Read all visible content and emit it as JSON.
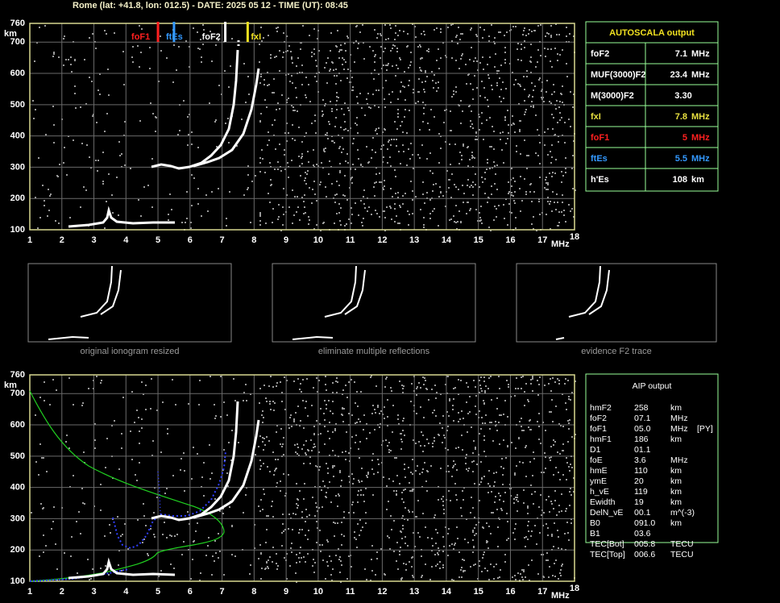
{
  "header": {
    "title": "Rome (lat: +41.8, lon: 012.5) - DATE: 2025 05 12 - TIME (UT): 08:45"
  },
  "top_plot": {
    "y_unit": "km",
    "x_unit": "MHz",
    "xlim": [
      1,
      18
    ],
    "ylim": [
      100,
      760
    ],
    "xticks": [
      1,
      2,
      3,
      4,
      5,
      6,
      7,
      8,
      9,
      10,
      11,
      12,
      13,
      14,
      15,
      16,
      17,
      18
    ],
    "yticks": [
      100,
      200,
      300,
      400,
      500,
      600,
      700,
      760
    ],
    "markers": [
      {
        "label": "foF1",
        "row": 4,
        "color": "#ff2020"
      },
      {
        "label": "ftEs",
        "row": 5,
        "color": "#3399ff"
      },
      {
        "label": "foF2",
        "row": 0,
        "color": "#ffffff"
      },
      {
        "label": "fxI",
        "row": 3,
        "color": "#f0e020"
      }
    ]
  },
  "autoscala": {
    "title": "AUTOSCALA output",
    "rows": [
      {
        "label": "foF2",
        "value": 7.1,
        "unit": "MHz",
        "color": "#ffffff"
      },
      {
        "label": "MUF(3000)F2",
        "value": 23.4,
        "unit": "MHz",
        "color": "#ffffff"
      },
      {
        "label": "M(3000)F2",
        "value": "3.30",
        "color": "#ffffff"
      },
      {
        "label": "fxI",
        "value": 7.8,
        "unit": "MHz",
        "color": "#e8e040"
      },
      {
        "label": "foF1",
        "value": 5.0,
        "unit": "MHz",
        "color": "#ff2020"
      },
      {
        "label": "ftEs",
        "value": 5.5,
        "unit": "MHz",
        "color": "#3399ff"
      },
      {
        "label": "h'Es",
        "value": 108,
        "unit": "km",
        "color": "#ffffff"
      }
    ]
  },
  "thumbnails": [
    {
      "caption": "original ionogram resized"
    },
    {
      "caption": "eliminate multiple reflections"
    },
    {
      "caption": "evidence F2 trace"
    }
  ],
  "bottom_plot": {
    "y_unit": "km",
    "x_unit": "MHz",
    "xlim": [
      1,
      18
    ],
    "ylim": [
      100,
      760
    ],
    "xticks": [
      1,
      2,
      3,
      4,
      5,
      6,
      7,
      8,
      9,
      10,
      11,
      12,
      13,
      14,
      15,
      16,
      17,
      18
    ],
    "yticks": [
      100,
      200,
      300,
      400,
      500,
      600,
      700,
      760
    ]
  },
  "aip": {
    "title": "AIP output",
    "rows": [
      [
        "hmF2",
        "258",
        "km"
      ],
      [
        "foF2",
        "07.1",
        "MHz"
      ],
      [
        "foF1",
        "05.0",
        "MHz",
        "[PY]"
      ],
      [
        "hmF1",
        "186",
        "km"
      ],
      [
        "D1",
        "01.1"
      ],
      [
        "foE",
        "3.6",
        "MHz"
      ],
      [
        "hmE",
        "110",
        "km"
      ],
      [
        "ymE",
        "20",
        "km"
      ],
      [
        "h_vE",
        "119",
        "km"
      ],
      [
        "Ewidth",
        "19",
        "km"
      ],
      [
        "DelN_vE",
        "00.1",
        "m^(-3)"
      ],
      [
        "B0",
        "091.0",
        "km"
      ],
      [
        "B1",
        "03.6"
      ],
      [
        "TEC[Bot]",
        "005.8",
        "TECU"
      ],
      [
        "TEC[Top]",
        "006.6",
        "TECU"
      ]
    ]
  }
}
